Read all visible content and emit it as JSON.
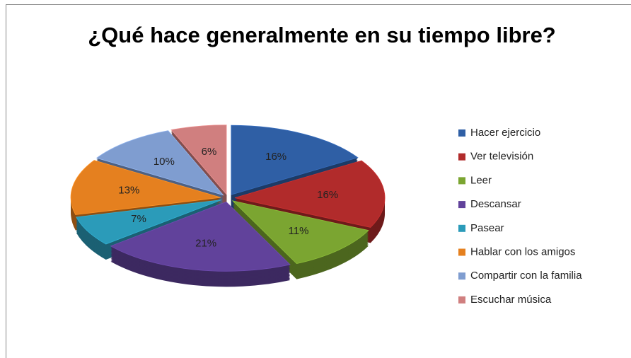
{
  "chart_data": {
    "type": "pie",
    "title": "¿Qué hace generalmente en su tiempo libre?",
    "categories": [
      "Hacer ejercicio",
      "Ver televisión",
      "Leer",
      "Descansar",
      "Pasear",
      "Hablar con los amigos",
      "Compartir con la familia",
      "Escuchar música"
    ],
    "values": [
      16,
      16,
      11,
      21,
      7,
      13,
      10,
      6
    ],
    "value_labels": [
      "16%",
      "16%",
      "11%",
      "21%",
      "7%",
      "13%",
      "10%",
      "6%"
    ],
    "colors": [
      "#2f5fa5",
      "#b12b2b",
      "#7ba531",
      "#61429b",
      "#2b9bb9",
      "#e5801f",
      "#7f9dd0",
      "#d07f7f"
    ],
    "legend": "right"
  }
}
